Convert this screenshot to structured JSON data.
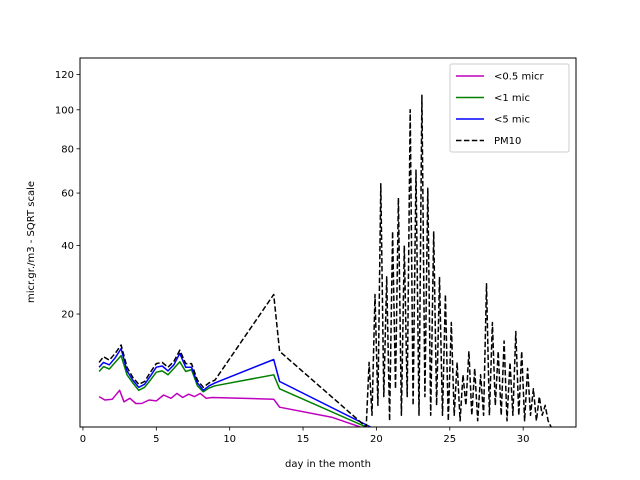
{
  "chart_data": {
    "type": "line",
    "title": "",
    "xlabel": "day in the month",
    "ylabel": "micr.gr./m3 - SQRT scale",
    "y_scale": "sqrt",
    "xlim": [
      -0.2,
      33.6
    ],
    "ylim": [
      2,
      130
    ],
    "x_ticks": [
      0,
      5,
      10,
      15,
      20,
      25,
      30
    ],
    "y_ticks": [
      20,
      40,
      60,
      80,
      100,
      120
    ],
    "grid": false,
    "legend_position": "top-right",
    "colors": {
      "pm05": "#bf00bf",
      "pm1": "#008000",
      "pm5": "#0000ff",
      "pm10": "#000000"
    },
    "series": [
      {
        "name": "<0.5 micr",
        "style": "solid",
        "color": "#bf00bf",
        "x": [
          1.1,
          1.5,
          2.0,
          2.5,
          2.8,
          3.2,
          3.6,
          4.0,
          4.5,
          5.0,
          5.5,
          6.0,
          6.4,
          6.8,
          7.2,
          7.6,
          8.0,
          8.4,
          8.8,
          13.0,
          13.4,
          17.0,
          18.9
        ],
        "y": [
          5.0,
          4.6,
          4.7,
          5.8,
          4.4,
          4.8,
          4.2,
          4.2,
          4.6,
          4.5,
          5.2,
          4.8,
          5.4,
          4.9,
          5.3,
          5.0,
          5.4,
          4.8,
          4.9,
          4.7,
          3.8,
          2.8,
          2.0
        ]
      },
      {
        "name": "<1 mic",
        "style": "solid",
        "color": "#008000",
        "x": [
          1.1,
          1.4,
          1.8,
          2.2,
          2.6,
          3.0,
          3.4,
          3.8,
          4.2,
          4.6,
          5.0,
          5.4,
          5.8,
          6.2,
          6.6,
          7.0,
          7.4,
          7.8,
          8.2,
          8.6,
          9.0,
          13.0,
          13.4,
          19.3
        ],
        "y": [
          8.5,
          9.3,
          8.9,
          10.0,
          11.2,
          8.0,
          6.8,
          5.8,
          6.2,
          7.2,
          8.4,
          8.6,
          8.0,
          9.0,
          10.1,
          8.5,
          8.8,
          6.4,
          5.6,
          6.1,
          6.4,
          8.0,
          6.0,
          2.0
        ]
      },
      {
        "name": "<5 mic",
        "style": "solid",
        "color": "#0000ff",
        "x": [
          1.1,
          1.4,
          1.8,
          2.2,
          2.6,
          3.0,
          3.4,
          3.8,
          4.2,
          4.6,
          5.0,
          5.4,
          5.8,
          6.2,
          6.6,
          7.0,
          7.4,
          7.8,
          8.2,
          8.6,
          9.0,
          13.0,
          13.4,
          19.6
        ],
        "y": [
          9.2,
          10.0,
          9.6,
          10.8,
          12.5,
          8.6,
          7.2,
          6.2,
          6.6,
          7.8,
          9.2,
          9.4,
          8.6,
          9.6,
          11.6,
          9.2,
          9.2,
          6.8,
          5.8,
          6.4,
          6.8,
          10.5,
          7.0,
          2.0
        ]
      },
      {
        "name": "PM10",
        "style": "dashed",
        "color": "#000000",
        "x": [
          1.1,
          1.4,
          1.8,
          2.2,
          2.6,
          3.0,
          3.4,
          3.8,
          4.2,
          4.6,
          5.0,
          5.4,
          5.8,
          6.2,
          6.6,
          7.0,
          7.4,
          7.8,
          8.2,
          8.6,
          9.0,
          13.0,
          13.4,
          19.3,
          19.5,
          19.7,
          19.9,
          20.1,
          20.3,
          20.5,
          20.7,
          20.9,
          21.1,
          21.3,
          21.5,
          21.7,
          21.9,
          22.1,
          22.3,
          22.5,
          22.7,
          22.9,
          23.1,
          23.3,
          23.5,
          23.7,
          23.9,
          24.1,
          24.3,
          24.5,
          24.7,
          24.9,
          25.1,
          25.3,
          25.5,
          25.7,
          25.9,
          26.1,
          26.3,
          26.5,
          26.7,
          26.9,
          27.1,
          27.3,
          27.5,
          27.7,
          27.9,
          28.1,
          28.3,
          28.5,
          28.7,
          28.9,
          29.1,
          29.3,
          29.5,
          29.7,
          29.9,
          30.1,
          30.3,
          30.5,
          30.7,
          30.9,
          31.1,
          31.3,
          31.5,
          31.7,
          31.9
        ],
        "y": [
          10.0,
          11.0,
          10.4,
          11.6,
          13.2,
          9.2,
          7.6,
          6.6,
          7.0,
          8.4,
          9.8,
          10.0,
          9.2,
          10.2,
          12.2,
          9.8,
          9.8,
          7.2,
          6.2,
          6.8,
          7.2,
          25.0,
          12.0,
          2.0,
          10.0,
          3.0,
          25.0,
          4.0,
          64.0,
          5.0,
          30.0,
          2.5,
          45.0,
          6.0,
          58.0,
          3.0,
          40.0,
          5.0,
          100.0,
          4.0,
          70.0,
          3.0,
          108.0,
          5.0,
          62.0,
          3.0,
          45.0,
          4.0,
          30.0,
          3.0,
          25.0,
          2.5,
          18.0,
          3.0,
          10.0,
          2.5,
          8.0,
          4.0,
          12.0,
          3.0,
          9.0,
          2.5,
          8.0,
          3.0,
          28.0,
          3.0,
          18.0,
          4.0,
          12.0,
          3.0,
          14.0,
          2.5,
          10.0,
          3.0,
          16.0,
          3.0,
          12.0,
          2.5,
          9.0,
          3.0,
          6.0,
          2.5,
          5.0,
          3.0,
          4.0,
          2.5,
          2.0
        ]
      }
    ]
  }
}
